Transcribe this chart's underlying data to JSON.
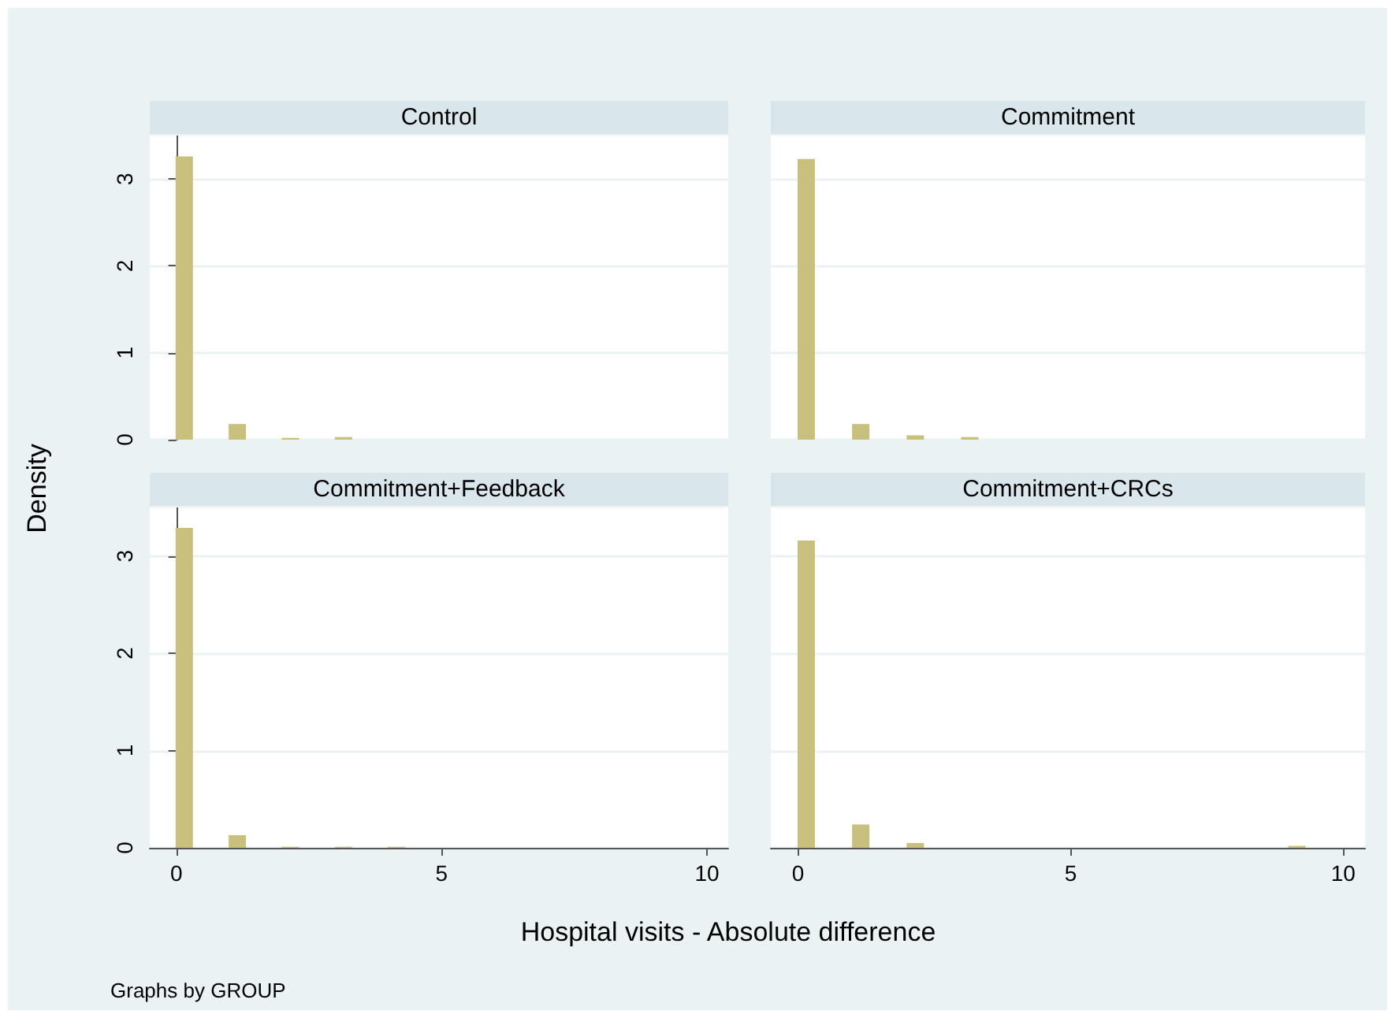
{
  "chart_data": [
    {
      "type": "bar",
      "title": "Control",
      "ylabel": "Density",
      "x": [
        0.15,
        1.15,
        2.15,
        3.15
      ],
      "values": [
        3.26,
        0.18,
        0.02,
        0.03
      ],
      "color": "#c9c07e",
      "xlim": [
        -0.5,
        10.4
      ],
      "xticks": [
        0,
        5,
        10
      ],
      "ylim": [
        0,
        3.5
      ],
      "yticks": [
        0,
        1,
        2,
        3
      ],
      "grid": "y",
      "tick_labels": "y"
    },
    {
      "type": "bar",
      "title": "Commitment",
      "x": [
        0.15,
        1.15,
        2.15,
        3.15
      ],
      "values": [
        3.23,
        0.18,
        0.05,
        0.03
      ],
      "color": "#c9c07e",
      "xlim": [
        -0.5,
        10.4
      ],
      "xticks": [
        0,
        5,
        10
      ],
      "ylim": [
        0,
        3.5
      ],
      "yticks": [
        0,
        1,
        2,
        3
      ],
      "grid": "y",
      "tick_labels": false
    },
    {
      "type": "bar",
      "title": "Commitment+Feedback",
      "xlabel": "Hospital visits - Absolute difference",
      "annotations": [
        "Graphs by GROUP"
      ],
      "x": [
        0.15,
        1.15,
        2.15,
        3.15,
        4.15
      ],
      "values": [
        3.29,
        0.13,
        0.01,
        0.01,
        0.01
      ],
      "color": "#c9c07e",
      "xlim": [
        -0.5,
        10.4
      ],
      "xticks": [
        0,
        5,
        10
      ],
      "ylim": [
        0,
        3.5
      ],
      "yticks": [
        0,
        1,
        2,
        3
      ],
      "grid": "y"
    },
    {
      "type": "bar",
      "title": "Commitment+CRCs",
      "x": [
        0.15,
        1.15,
        2.15,
        9.15
      ],
      "values": [
        3.16,
        0.24,
        0.05,
        0.02
      ],
      "color": "#c9c07e",
      "xlim": [
        -0.5,
        10.4
      ],
      "xticks": [
        0,
        5,
        10
      ],
      "ylim": [
        0,
        3.5
      ],
      "yticks": [
        0,
        1,
        2,
        3
      ],
      "grid": "y",
      "tick_labels": "x"
    }
  ]
}
